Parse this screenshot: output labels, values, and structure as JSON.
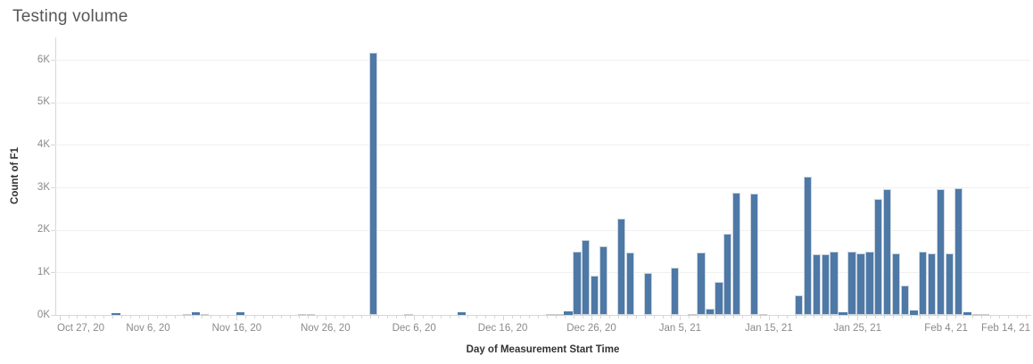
{
  "title": "Testing volume",
  "colors": {
    "bar": "#4e79a7",
    "bar_faded": "#d8d8d8",
    "gridline": "#f0f0f0",
    "axis_line": "#d7d7d7",
    "tick_text": "#8a8a8a",
    "axis_title_text": "#333333",
    "title_text": "#575757"
  },
  "chart_data": {
    "type": "bar",
    "title": "Testing volume",
    "xlabel": "Day of Measurement Start Time",
    "ylabel": "Count of F1",
    "ylim": [
      0,
      6500
    ],
    "grid": "horizontal",
    "legend": "none",
    "y_ticks": [
      {
        "label": "0K",
        "value": 0
      },
      {
        "label": "1K",
        "value": 1000
      },
      {
        "label": "2K",
        "value": 2000
      },
      {
        "label": "3K",
        "value": 3000
      },
      {
        "label": "4K",
        "value": 4000
      },
      {
        "label": "5K",
        "value": 5000
      },
      {
        "label": "6K",
        "value": 6000
      }
    ],
    "x_ticks": [
      {
        "label": "Oct 27, 20",
        "day": 0
      },
      {
        "label": "Nov 6, 20",
        "day": 10
      },
      {
        "label": "Nov 16, 20",
        "day": 20
      },
      {
        "label": "Nov 26, 20",
        "day": 30
      },
      {
        "label": "Dec 6, 20",
        "day": 40
      },
      {
        "label": "Dec 16, 20",
        "day": 50
      },
      {
        "label": "Dec 26, 20",
        "day": 60
      },
      {
        "label": "Jan 5, 21",
        "day": 70
      },
      {
        "label": "Jan 15, 21",
        "day": 80
      },
      {
        "label": "Jan 25, 21",
        "day": 90
      },
      {
        "label": "Feb 4, 21",
        "day": 100
      },
      {
        "label": "Feb 14, 21",
        "day": 110
      }
    ],
    "x_start_date": "2020-10-27",
    "x_range_days": [
      0,
      110
    ],
    "bars": [
      {
        "date": "2020-11-02",
        "value": 50,
        "style": "normal"
      },
      {
        "date": "2020-11-10",
        "value": 25,
        "style": "faded"
      },
      {
        "date": "2020-11-11",
        "value": 55,
        "style": "normal"
      },
      {
        "date": "2020-11-12",
        "value": 25,
        "style": "faded"
      },
      {
        "date": "2020-11-16",
        "value": 65,
        "style": "normal"
      },
      {
        "date": "2020-11-23",
        "value": 20,
        "style": "faded"
      },
      {
        "date": "2020-11-24",
        "value": 20,
        "style": "faded"
      },
      {
        "date": "2020-12-01",
        "value": 6160,
        "style": "normal"
      },
      {
        "date": "2020-12-05",
        "value": 30,
        "style": "faded"
      },
      {
        "date": "2020-12-11",
        "value": 55,
        "style": "normal"
      },
      {
        "date": "2020-12-21",
        "value": 20,
        "style": "faded"
      },
      {
        "date": "2020-12-22",
        "value": 20,
        "style": "faded"
      },
      {
        "date": "2020-12-23",
        "value": 80,
        "style": "normal"
      },
      {
        "date": "2020-12-24",
        "value": 1490,
        "style": "normal"
      },
      {
        "date": "2020-12-25",
        "value": 1760,
        "style": "normal"
      },
      {
        "date": "2020-12-26",
        "value": 930,
        "style": "normal"
      },
      {
        "date": "2020-12-27",
        "value": 1620,
        "style": "normal"
      },
      {
        "date": "2020-12-29",
        "value": 2270,
        "style": "normal"
      },
      {
        "date": "2020-12-30",
        "value": 1470,
        "style": "normal"
      },
      {
        "date": "2021-01-01",
        "value": 990,
        "style": "normal"
      },
      {
        "date": "2021-01-04",
        "value": 1110,
        "style": "normal"
      },
      {
        "date": "2021-01-06",
        "value": 30,
        "style": "faded"
      },
      {
        "date": "2021-01-07",
        "value": 1470,
        "style": "normal"
      },
      {
        "date": "2021-01-08",
        "value": 150,
        "style": "normal"
      },
      {
        "date": "2021-01-09",
        "value": 780,
        "style": "normal"
      },
      {
        "date": "2021-01-10",
        "value": 1900,
        "style": "normal"
      },
      {
        "date": "2021-01-11",
        "value": 2880,
        "style": "normal"
      },
      {
        "date": "2021-01-13",
        "value": 2850,
        "style": "normal"
      },
      {
        "date": "2021-01-14",
        "value": 25,
        "style": "faded"
      },
      {
        "date": "2021-01-18",
        "value": 470,
        "style": "normal"
      },
      {
        "date": "2021-01-19",
        "value": 3250,
        "style": "normal"
      },
      {
        "date": "2021-01-20",
        "value": 1430,
        "style": "normal"
      },
      {
        "date": "2021-01-21",
        "value": 1430,
        "style": "normal"
      },
      {
        "date": "2021-01-22",
        "value": 1480,
        "style": "normal"
      },
      {
        "date": "2021-01-23",
        "value": 55,
        "style": "normal"
      },
      {
        "date": "2021-01-24",
        "value": 1480,
        "style": "normal"
      },
      {
        "date": "2021-01-25",
        "value": 1450,
        "style": "normal"
      },
      {
        "date": "2021-01-26",
        "value": 1490,
        "style": "normal"
      },
      {
        "date": "2021-01-27",
        "value": 2730,
        "style": "normal"
      },
      {
        "date": "2021-01-28",
        "value": 2950,
        "style": "normal"
      },
      {
        "date": "2021-01-29",
        "value": 1450,
        "style": "normal"
      },
      {
        "date": "2021-01-30",
        "value": 700,
        "style": "normal"
      },
      {
        "date": "2021-01-31",
        "value": 100,
        "style": "normal"
      },
      {
        "date": "2021-02-01",
        "value": 1490,
        "style": "normal"
      },
      {
        "date": "2021-02-02",
        "value": 1450,
        "style": "normal"
      },
      {
        "date": "2021-02-03",
        "value": 2960,
        "style": "normal"
      },
      {
        "date": "2021-02-04",
        "value": 1450,
        "style": "normal"
      },
      {
        "date": "2021-02-05",
        "value": 2980,
        "style": "normal"
      },
      {
        "date": "2021-02-06",
        "value": 60,
        "style": "normal"
      },
      {
        "date": "2021-02-07",
        "value": 20,
        "style": "faded"
      },
      {
        "date": "2021-02-08",
        "value": 15,
        "style": "faded"
      }
    ]
  }
}
